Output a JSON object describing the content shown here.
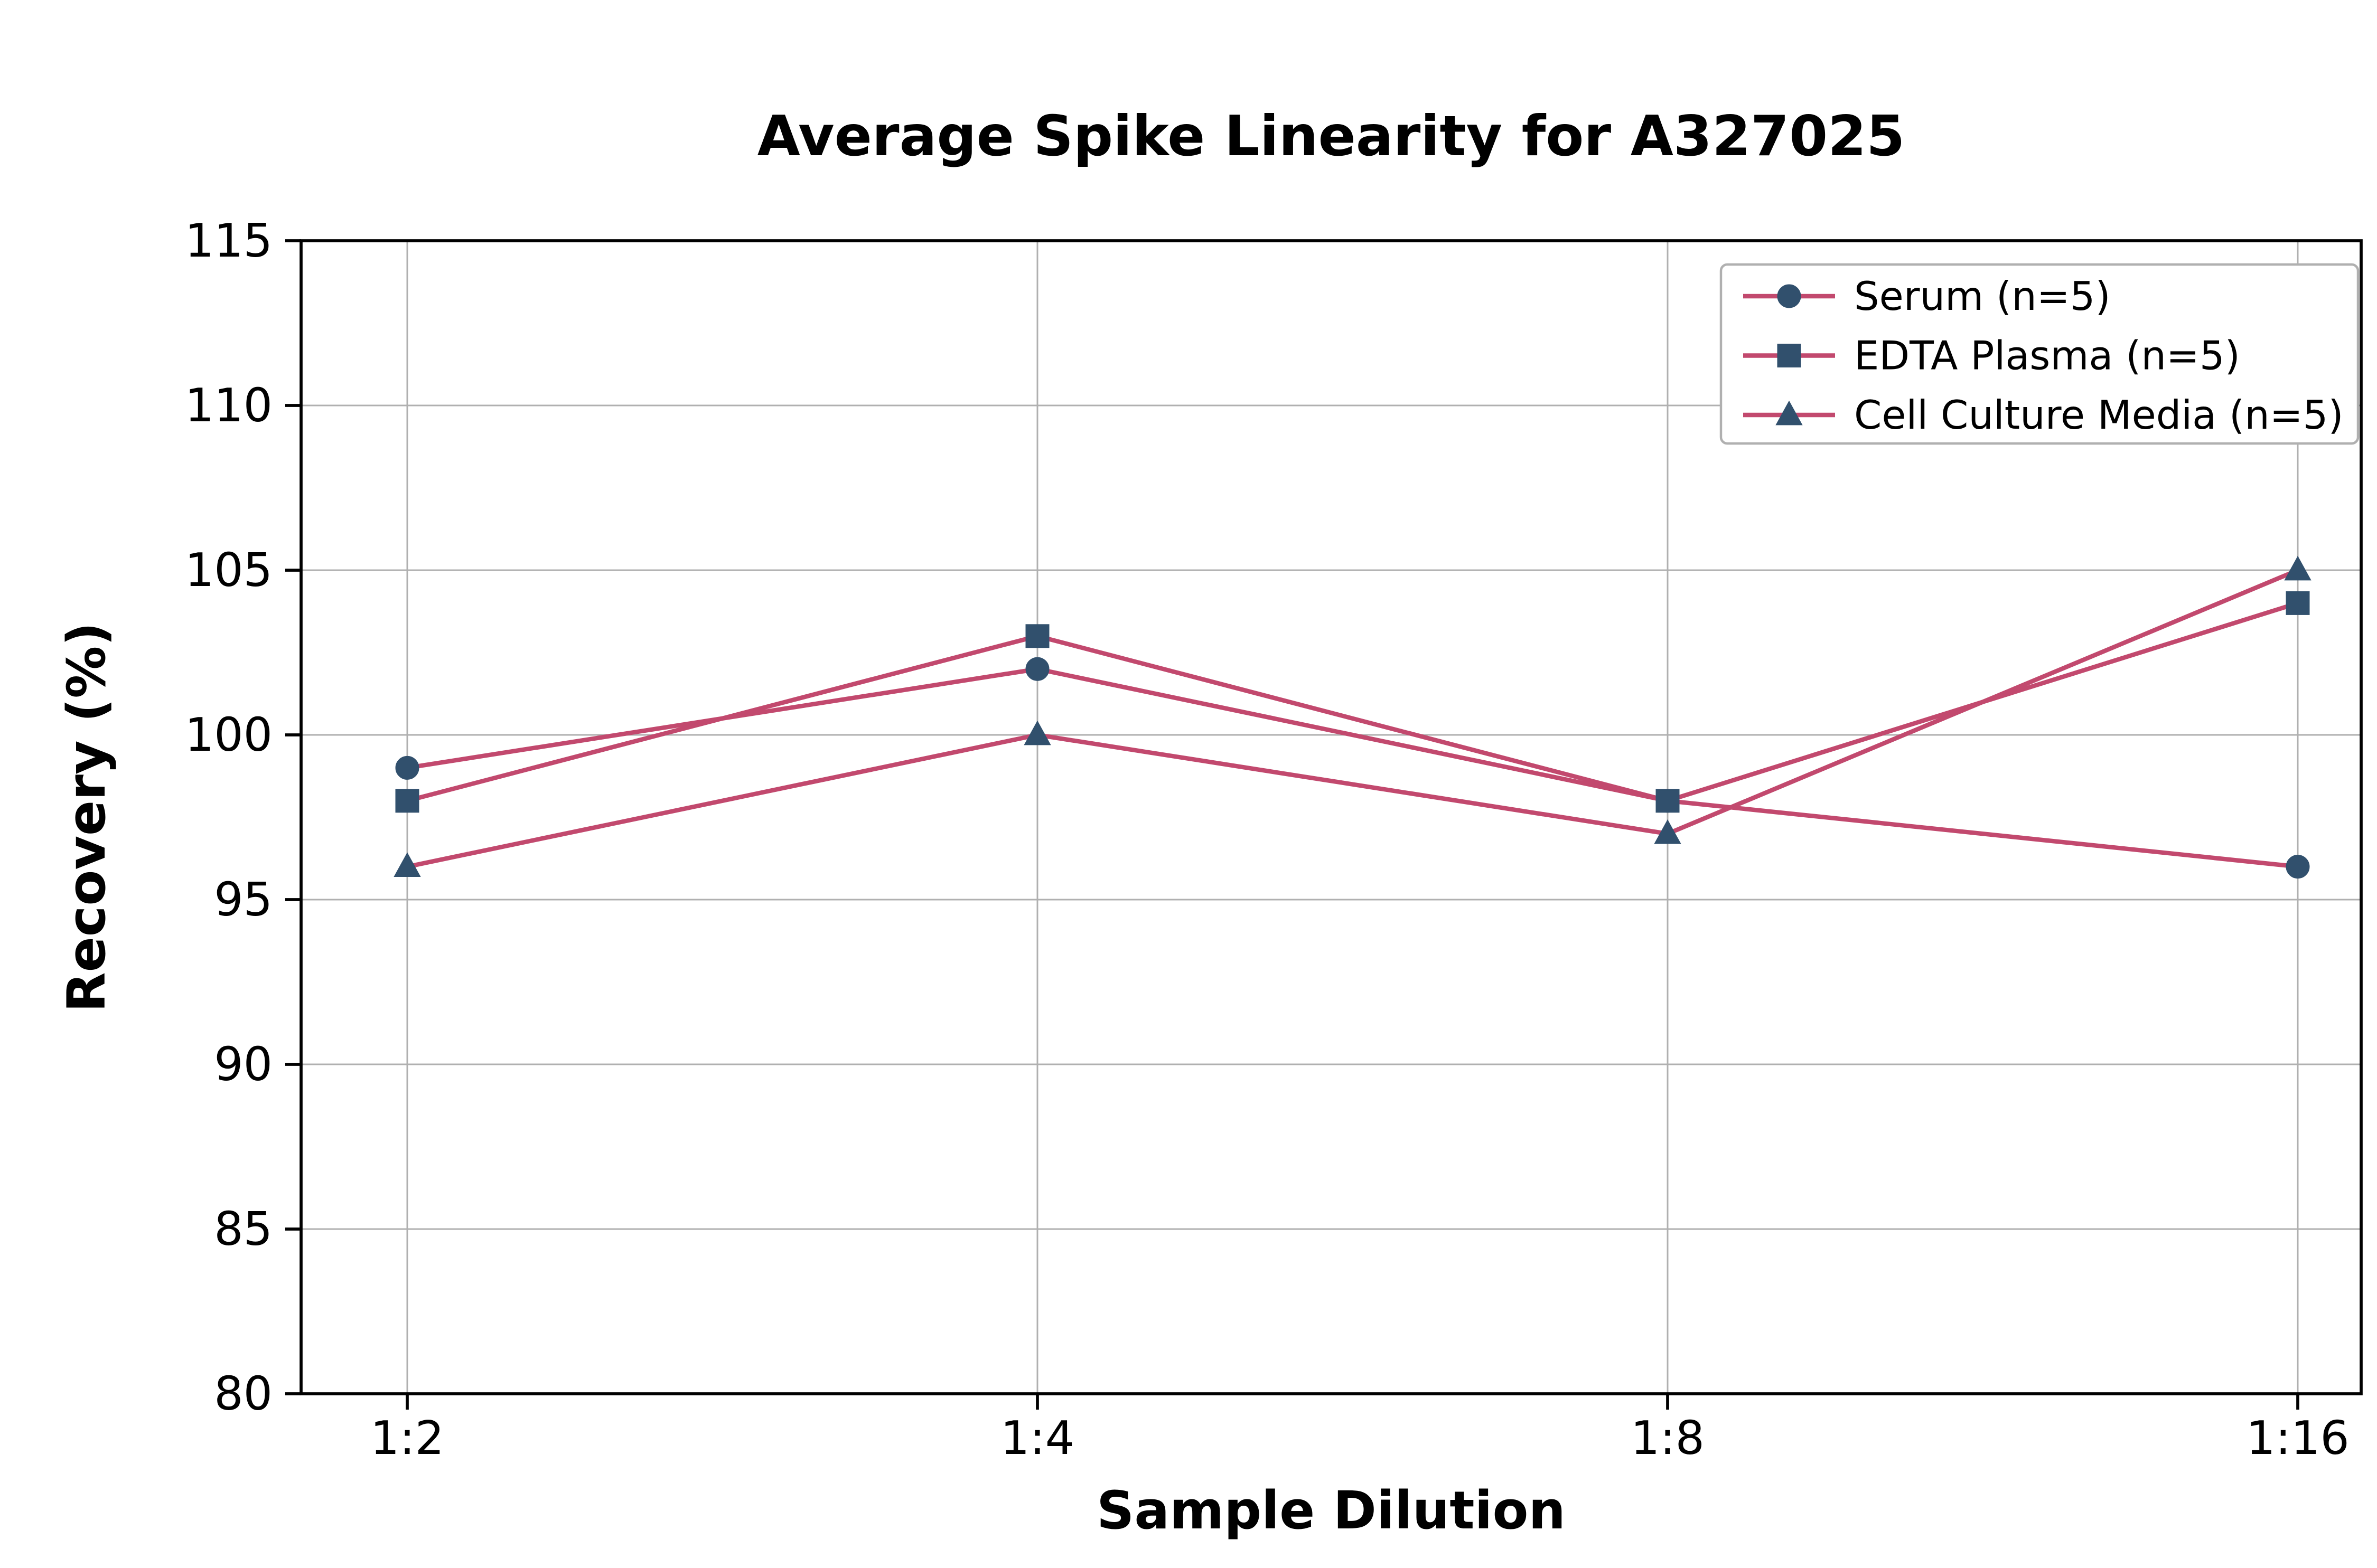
{
  "chart_data": {
    "type": "line",
    "title": "Average Spike Linearity for A327025",
    "xlabel": "Sample Dilution",
    "ylabel": "Recovery (%)",
    "categories": [
      "1:2",
      "1:4",
      "1:8",
      "1:16"
    ],
    "ylim": [
      80,
      115
    ],
    "yticks": [
      80,
      85,
      90,
      95,
      100,
      105,
      110,
      115
    ],
    "grid": true,
    "legend_position": "upper right",
    "colors": {
      "line": "#c2496e",
      "marker": "#31506d",
      "grid": "#b0b0b0",
      "axis": "#000000",
      "background": "#ffffff"
    },
    "series": [
      {
        "name": "Serum (n=5)",
        "marker": "circle",
        "values": [
          99,
          102,
          98,
          96
        ]
      },
      {
        "name": "EDTA Plasma (n=5)",
        "marker": "square",
        "values": [
          98,
          103,
          98,
          104
        ]
      },
      {
        "name": "Cell Culture Media (n=5)",
        "marker": "triangle",
        "values": [
          96,
          100,
          97,
          105
        ]
      }
    ]
  }
}
